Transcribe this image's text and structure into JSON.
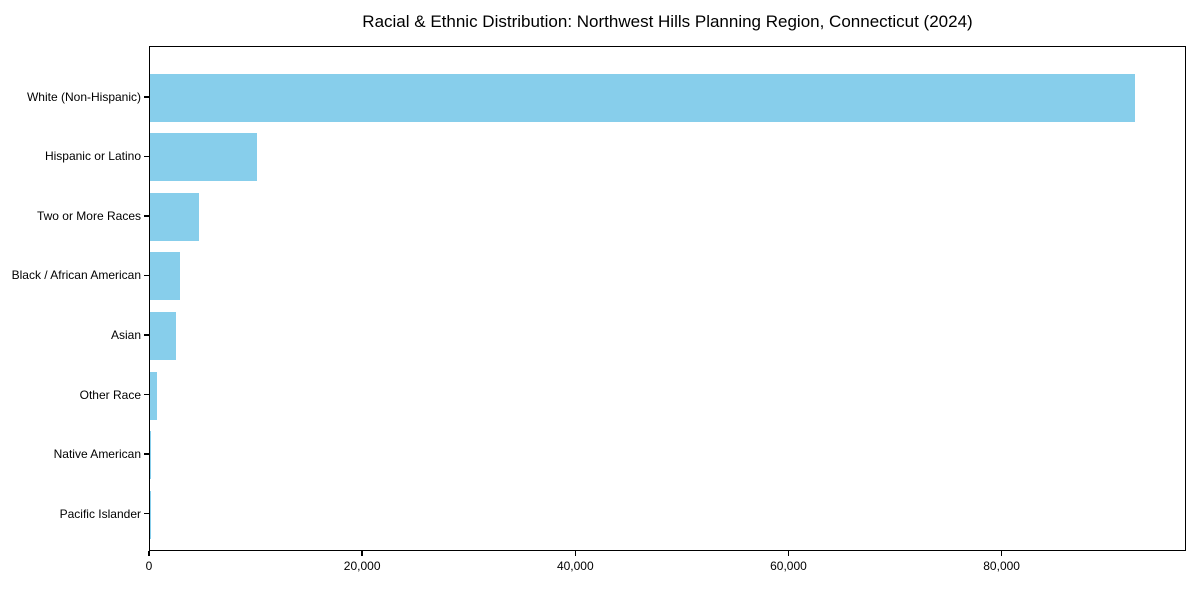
{
  "figure": {
    "background_color": "#FFFFFF",
    "axis_color": "#000000",
    "text_color": "#000000"
  },
  "chart_data": {
    "type": "bar",
    "orientation": "horizontal",
    "title": "Racial & Ethnic Distribution: Northwest Hills Planning Region, Connecticut (2024)",
    "categories": [
      "White (Non-Hispanic)",
      "Hispanic or Latino",
      "Two or More Races",
      "Black / African American",
      "Asian",
      "Other Race",
      "Native American",
      "Pacific Islander"
    ],
    "values": [
      92600,
      10100,
      4600,
      2800,
      2450,
      660,
      60,
      20
    ],
    "bar_color": "#87CEEB",
    "xlabel": "",
    "ylabel": "",
    "xlim": [
      0,
      97300
    ],
    "xticks": [
      0,
      20000,
      40000,
      60000,
      80000
    ],
    "xtick_labels": [
      "0",
      "20,000",
      "40,000",
      "60,000",
      "80,000"
    ],
    "grid": false,
    "legend": null
  }
}
